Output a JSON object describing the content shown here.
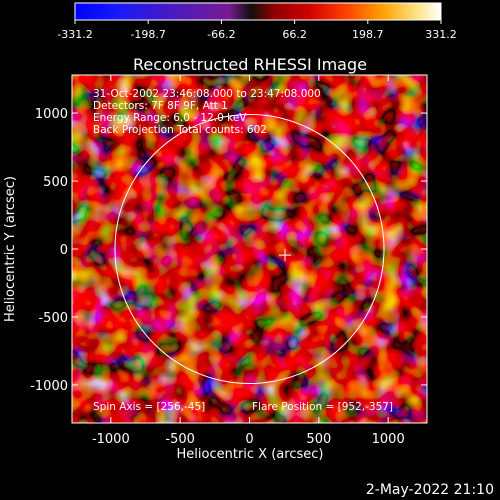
{
  "colorbar": {
    "ticks": [
      "-331.2",
      "-198.7",
      "-66.2",
      "66.2",
      "198.7",
      "331.2"
    ]
  },
  "title": "Reconstructed RHESSI Image",
  "info": {
    "line1": "31-Oct-2002 23:46:08.000 to 23:47:08.000",
    "line2": "Detectors: 7F 8F 9F, Att 1",
    "line3": "Energy Range: 6.0 - 12.0 keV",
    "line4": "Back Projection    Total counts: 602"
  },
  "footer": {
    "spin_axis": "Spin Axis = [256,-45]",
    "flare_position": "Flare Position = [952,-357]",
    "timestamp": "2-May-2022 21:10"
  },
  "axes": {
    "xlabel": "Heliocentric X (arcsec)",
    "ylabel": "Heliocentric Y (arcsec)",
    "x_ticks": [
      "-1000",
      "-500",
      "0",
      "500",
      "1000"
    ],
    "y_ticks": [
      "1000",
      "500",
      "0",
      "-500",
      "-1000"
    ]
  },
  "colors": {
    "background": "#000000",
    "foreground": "#ffffff"
  },
  "chart_data": {
    "type": "heatmap",
    "title": "Reconstructed RHESSI Image",
    "xlabel": "Heliocentric X (arcsec)",
    "ylabel": "Heliocentric Y (arcsec)",
    "xlim": [
      -1280,
      1280
    ],
    "ylim": [
      -1280,
      1280
    ],
    "colorscale_range": [
      -331.2,
      331.2
    ],
    "circle": {
      "center": [
        0,
        0
      ],
      "radius": 970
    },
    "spin_axis": [
      256,
      -45
    ]
  }
}
